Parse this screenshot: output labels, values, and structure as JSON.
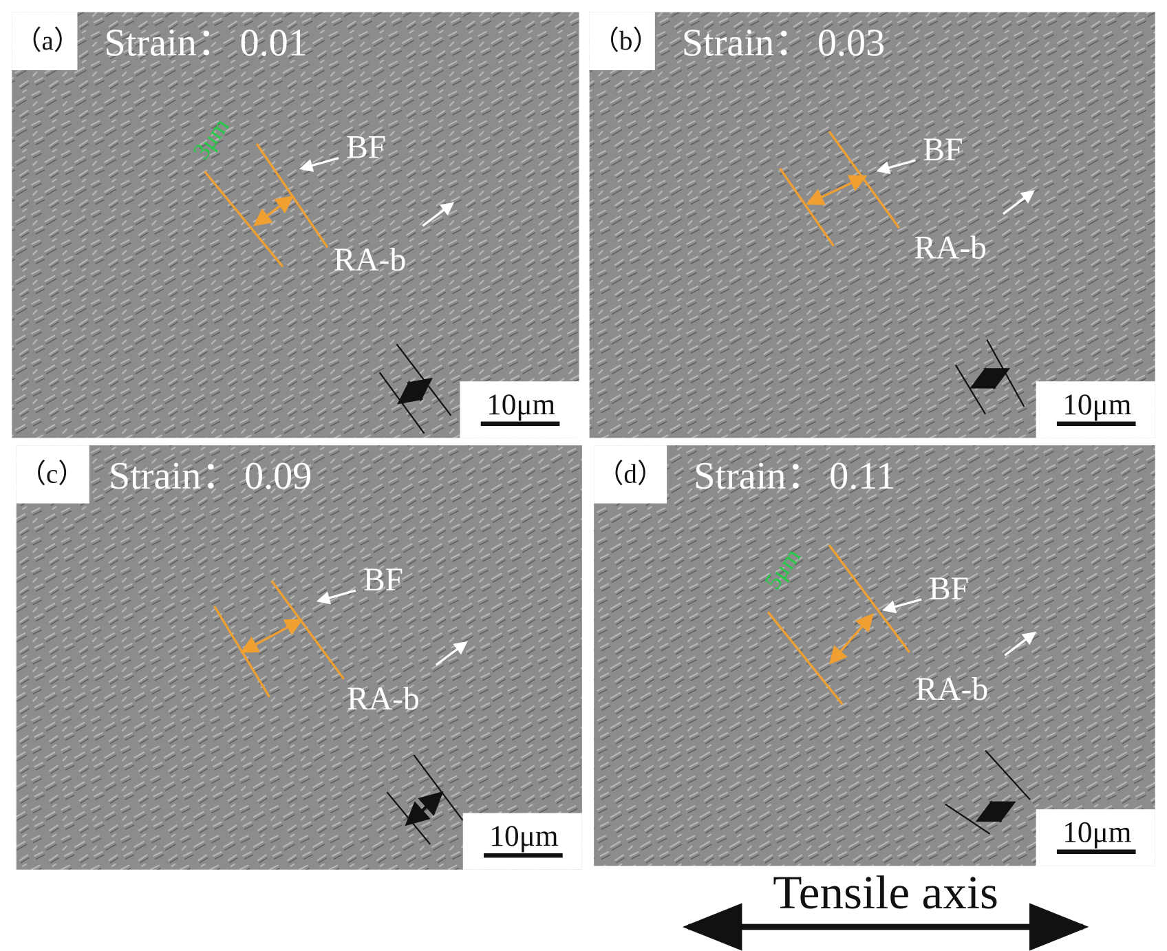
{
  "panels": [
    {
      "label": "（a）",
      "strain_label": "Strain：",
      "strain": "0.01",
      "measure": "3μm",
      "bf": "BF",
      "rab": "RA-b",
      "scale_bar": "10μm"
    },
    {
      "label": "（b）",
      "strain_label": "Strain：",
      "strain": "0.03",
      "bf": "BF",
      "rab": "RA-b",
      "scale_bar": "10μm"
    },
    {
      "label": "（c）",
      "strain_label": "Strain：",
      "strain": "0.09",
      "bf": "BF",
      "rab": "RA-b",
      "scale_bar": "10μm"
    },
    {
      "label": "（d）",
      "strain_label": "Strain：",
      "strain": "0.11",
      "measure": "5μm",
      "bf": "BF",
      "rab": "RA-b",
      "scale_bar": "10μm"
    }
  ],
  "tensile_axis": "Tensile axis"
}
